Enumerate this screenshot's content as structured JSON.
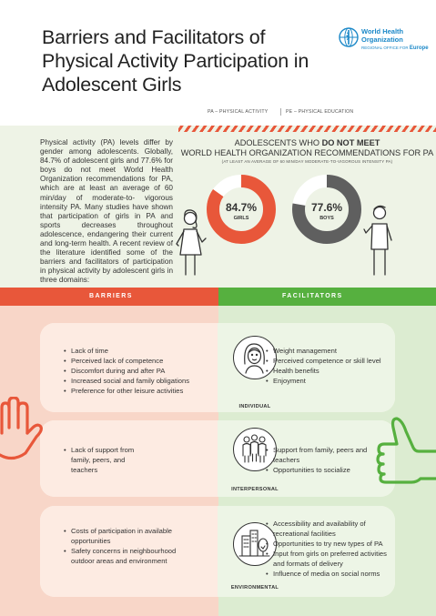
{
  "header": {
    "title": "Barriers and Facilitators of Physical Activity Participation in Adolescent Girls",
    "who_name_line1": "World Health",
    "who_name_line2": "Organization",
    "who_region": "Europe",
    "who_tagline": "REGIONAL OFFICE FOR"
  },
  "abbreviations": {
    "pa": "PA – PHYSICAL ACTIVITY",
    "pe": "PE – PHYSICAL EDUCATION"
  },
  "intro": {
    "text": "Physical activity (PA) levels differ by gender among adolescents. Globally, 84.7% of adolescent girls and 77.6% for boys do not meet World Health Organization recommendations for PA, which are at least an average of 60 min/day of moderate-to- vigorous intensity PA. Many studies have shown that participation of girls in PA and sports decreases throughout adolescence, endangering their current and long-term health. A recent review of the literature identified some of the barriers and facilitators of participation in physical activity by adolescent girls in three domains:"
  },
  "stats": {
    "heading_pre": "ADOLESCENTS WHO ",
    "heading_bold": "DO NOT MEET",
    "heading_line2": "WORLD HEALTH ORGANIZATION RECOMMENDATIONS FOR PA",
    "note": "(AT LEAST AN AVERAGE OF 60 MIN/DAY MODERATE-TO-VIGOROUS INTENSITY PA)",
    "girls": {
      "value": "84.7%",
      "label": "GIRLS",
      "fraction": 0.847,
      "color": "#e8573a"
    },
    "boys": {
      "value": "77.6%",
      "label": "BOYS",
      "fraction": 0.776,
      "color": "#5f5f5f"
    }
  },
  "sections": {
    "barriers_label": "BARRIERS",
    "facilitators_label": "FACILITATORS"
  },
  "levels": {
    "individual": {
      "label": "INDIVIDUAL",
      "barriers": [
        "Lack of time",
        "Perceived lack of competence",
        "Discomfort during and after PA",
        "Increased social and family obligations",
        "Preference for other leisure activities"
      ],
      "facilitators": [
        "Weight management",
        "Perceived competence or skill level",
        "Health benefits",
        "Enjoyment"
      ]
    },
    "interpersonal": {
      "label": "INTERPERSONAL",
      "barriers": [
        "Lack of support from family, peers, and teachers"
      ],
      "facilitators": [
        "Support from family, peers and teachers",
        "Opportunities to socialize"
      ]
    },
    "environmental": {
      "label": "ENVIRONMENTAL",
      "barriers": [
        "Costs of participation in available opportunities",
        "Safety concerns in neighbourhood outdoor areas and environment"
      ],
      "facilitators": [
        "Accessibility and availability of recreational facilities",
        "Opportunities to try new types of PA",
        "Input from girls on preferred activities and formats of delivery",
        "Influence of media on social norms"
      ]
    }
  },
  "colors": {
    "barrier": "#e8573a",
    "facilitator": "#56b03f",
    "who_blue": "#1b88c8"
  }
}
